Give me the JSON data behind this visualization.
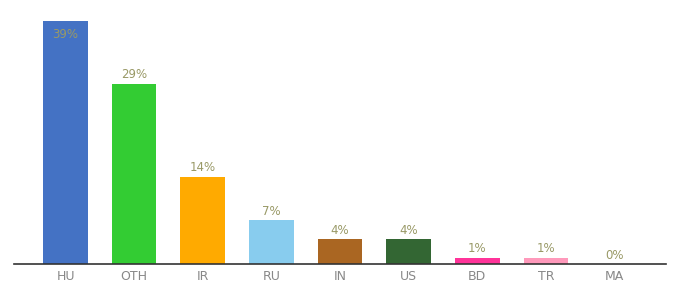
{
  "categories": [
    "HU",
    "OTH",
    "IR",
    "RU",
    "IN",
    "US",
    "BD",
    "TR",
    "MA"
  ],
  "values": [
    39,
    29,
    14,
    7,
    4,
    4,
    1,
    1,
    0
  ],
  "bar_colors": [
    "#4472c4",
    "#33cc33",
    "#ffaa00",
    "#88ccee",
    "#aa6622",
    "#336633",
    "#ff3399",
    "#ff99bb",
    "#cccccc"
  ],
  "label_color": "#999966",
  "background_color": "#ffffff",
  "ylim": [
    0,
    41
  ],
  "label_fontsize": 8.5,
  "xtick_color": "#888888",
  "xtick_fontsize": 9
}
